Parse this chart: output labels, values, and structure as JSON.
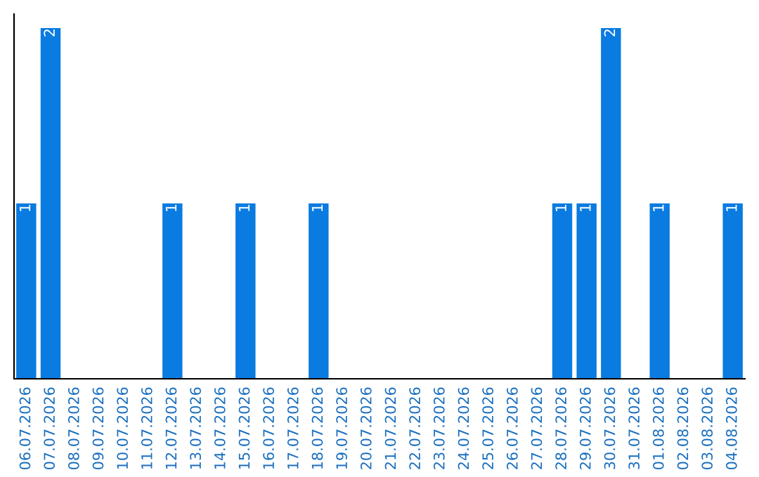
{
  "chart_data": {
    "type": "bar",
    "categories": [
      "06.07.2026",
      "07.07.2026",
      "08.07.2026",
      "09.07.2026",
      "10.07.2026",
      "11.07.2026",
      "12.07.2026",
      "13.07.2026",
      "14.07.2026",
      "15.07.2026",
      "16.07.2026",
      "17.07.2026",
      "18.07.2026",
      "19.07.2026",
      "20.07.2026",
      "21.07.2026",
      "22.07.2026",
      "23.07.2026",
      "24.07.2026",
      "25.07.2026",
      "26.07.2026",
      "27.07.2026",
      "28.07.2026",
      "29.07.2026",
      "30.07.2026",
      "31.07.2026",
      "01.08.2026",
      "02.08.2026",
      "03.08.2026",
      "04.08.2026"
    ],
    "values": [
      1,
      2,
      0,
      0,
      0,
      0,
      1,
      0,
      0,
      1,
      0,
      0,
      1,
      0,
      0,
      0,
      0,
      0,
      0,
      0,
      0,
      0,
      1,
      1,
      2,
      0,
      1,
      0,
      0,
      1
    ],
    "value_labels": [
      "1",
      "2",
      null,
      null,
      null,
      null,
      "1",
      null,
      null,
      "1",
      null,
      null,
      "1",
      null,
      null,
      null,
      null,
      null,
      null,
      null,
      null,
      null,
      "1",
      "1",
      "2",
      null,
      "1",
      null,
      null,
      "1"
    ],
    "color": "#0a7be0",
    "grid": false,
    "legend": false
  }
}
